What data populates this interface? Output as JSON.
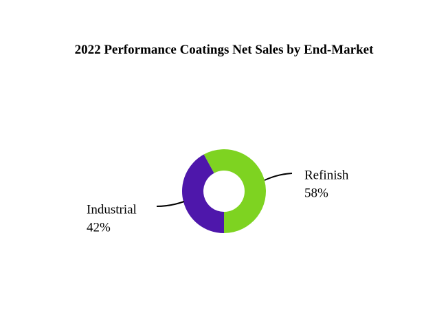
{
  "chart_data": {
    "type": "donut",
    "title": "2022 Performance Coatings Net Sales by End-Market",
    "categories": [
      "Refinish",
      "Industrial"
    ],
    "values": [
      58,
      42
    ],
    "value_labels": [
      "58%",
      "42%"
    ],
    "colors": [
      "#7ed321",
      "#4e17ab"
    ]
  }
}
